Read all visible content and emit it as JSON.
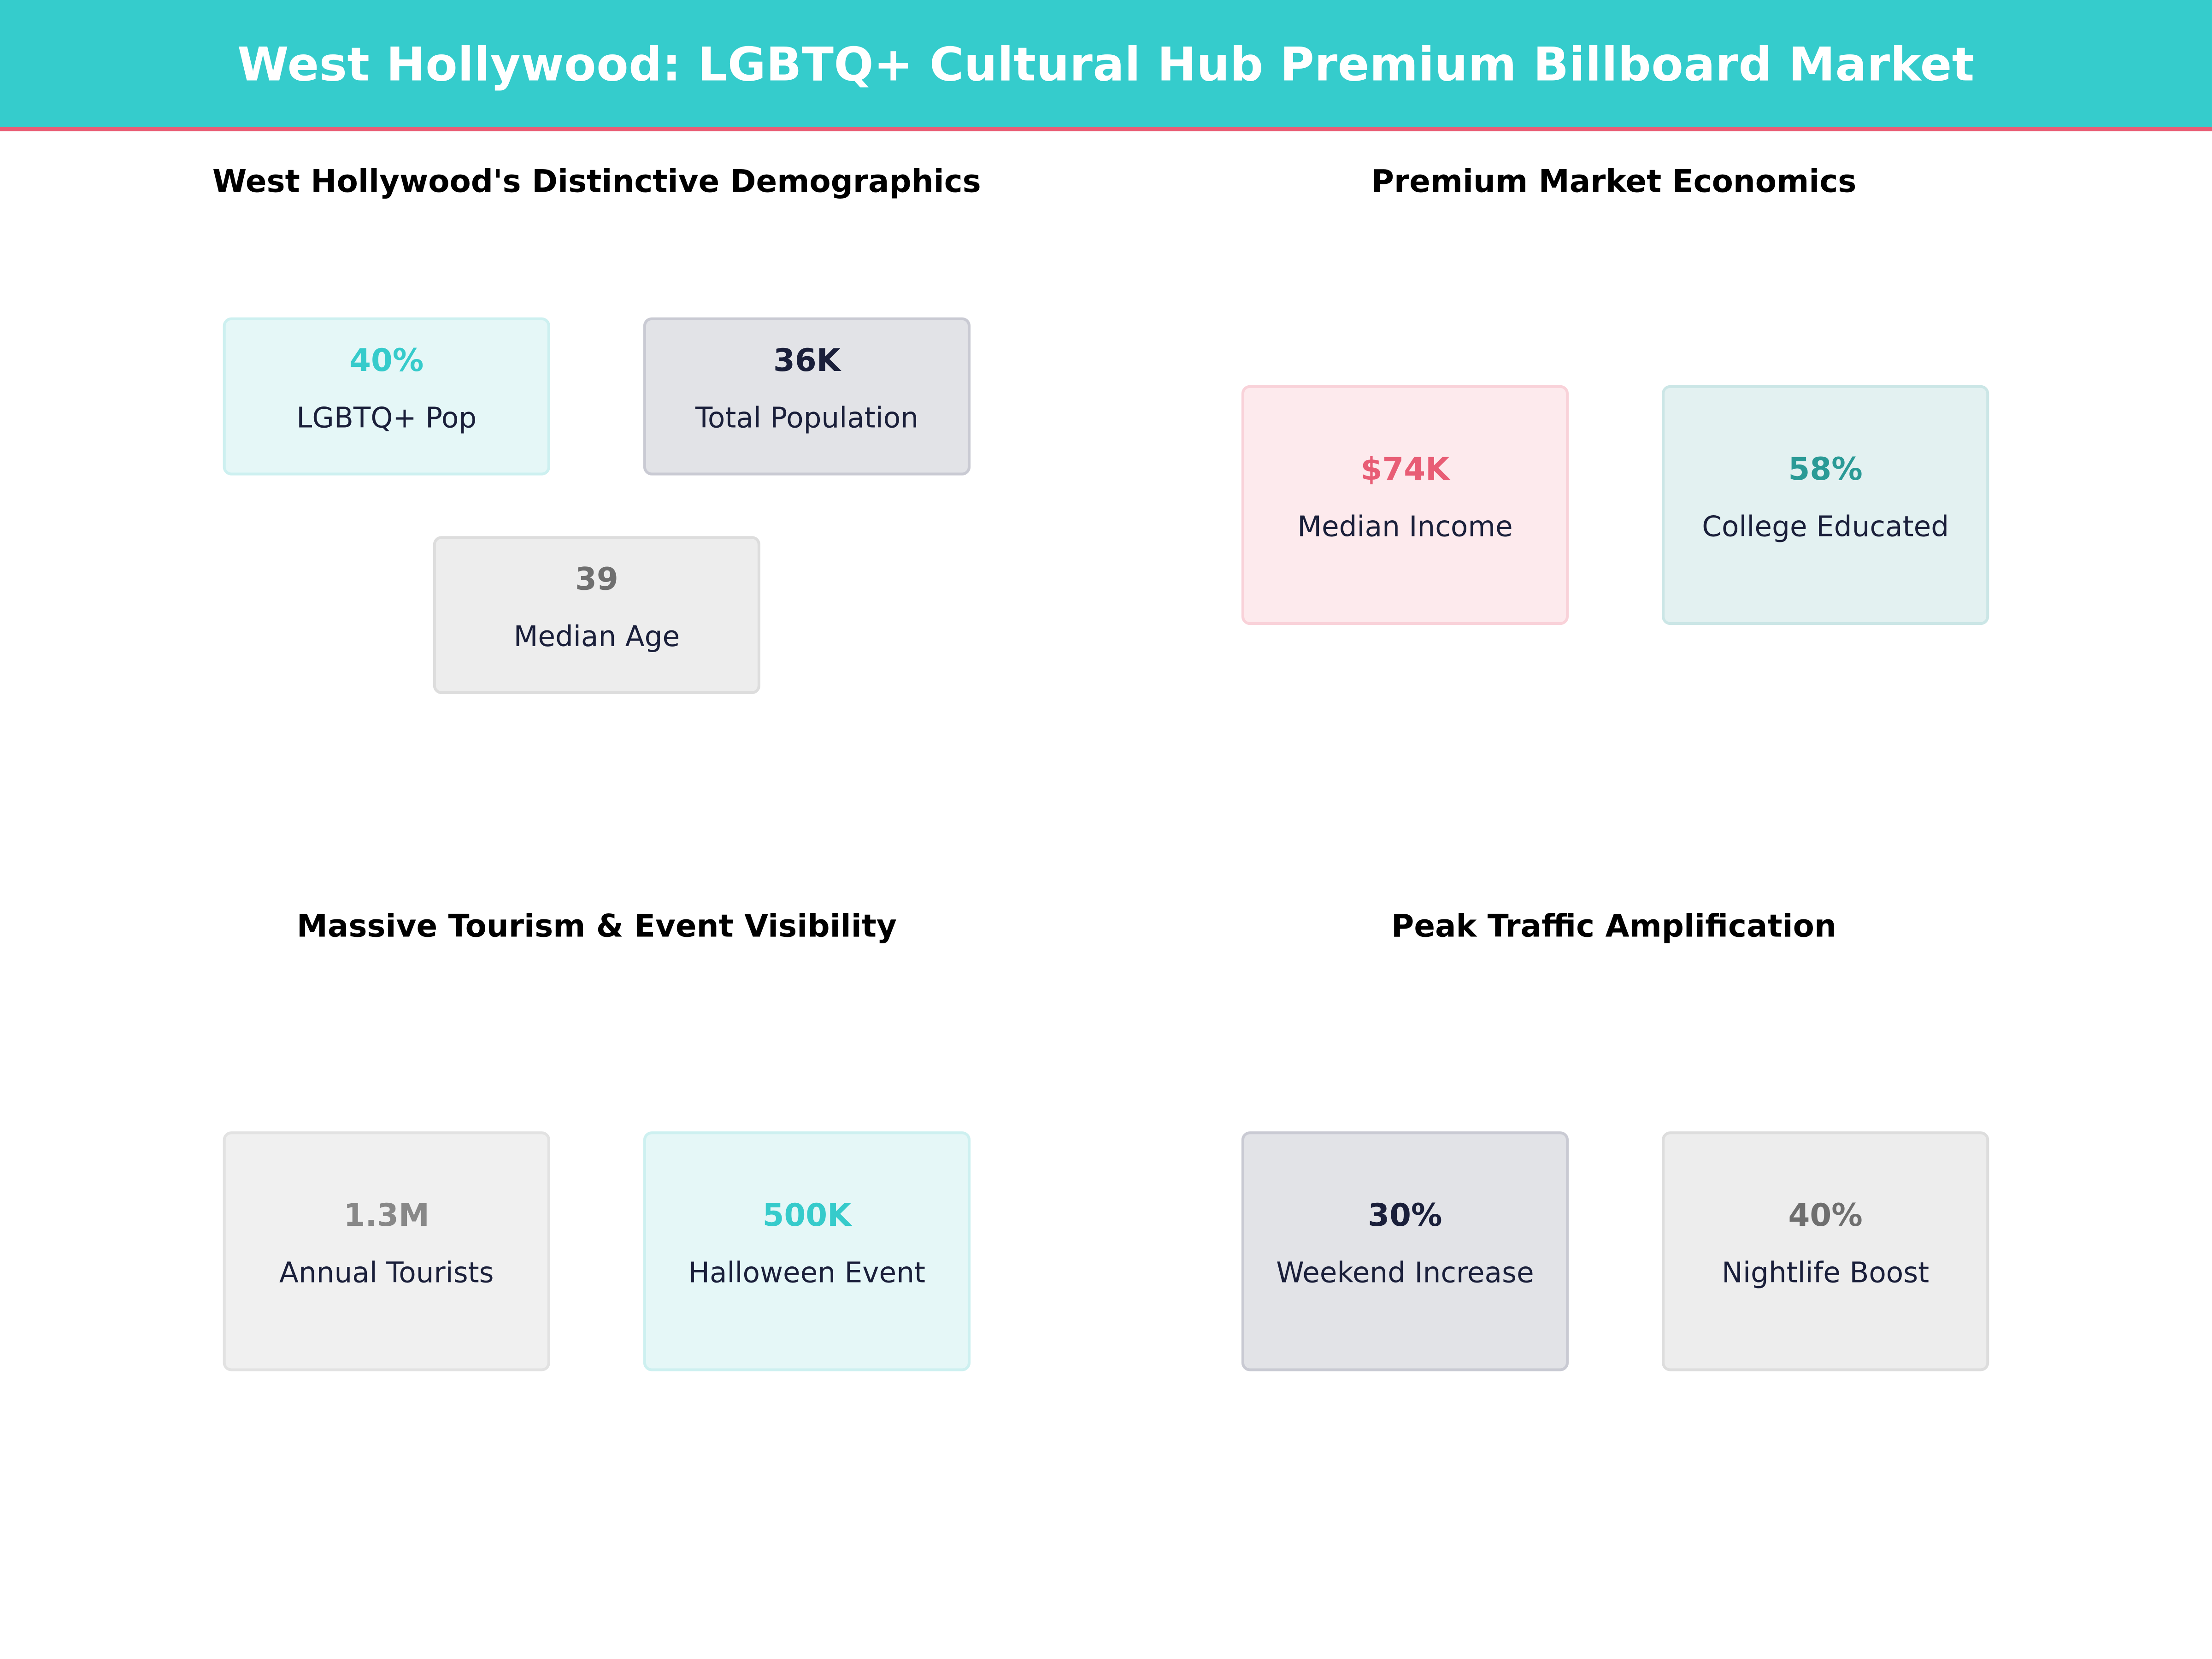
{
  "header": {
    "title": "West Hollywood: LGBTQ+ Cultural Hub Premium Billboard Market"
  },
  "colors": {
    "header": "#35cccc",
    "accent_line": "#e85d75",
    "teal": "#36cbcb",
    "pink": "#e85d75",
    "navy": "#1a1f3a",
    "dark_teal": "#2a9a96"
  },
  "sections": [
    {
      "title": "West Hollywood's Distinctive Demographics",
      "cards": [
        {
          "value": "40%",
          "label": "LGBTQ+ Pop"
        },
        {
          "value": "36K",
          "label": "Total Population"
        },
        {
          "value": "39",
          "label": "Median Age"
        }
      ]
    },
    {
      "title": "Premium Market Economics",
      "cards": [
        {
          "value": "$74K",
          "label": "Median Income"
        },
        {
          "value": "58%",
          "label": "College Educated"
        }
      ]
    },
    {
      "title": "Massive Tourism & Event Visibility",
      "cards": [
        {
          "value": "1.3M",
          "label": "Annual Tourists"
        },
        {
          "value": "500K",
          "label": "Halloween Event"
        }
      ]
    },
    {
      "title": "Peak Traffic Amplification",
      "cards": [
        {
          "value": "30%",
          "label": "Weekend Increase"
        },
        {
          "value": "40%",
          "label": "Nightlife Boost"
        }
      ]
    }
  ]
}
